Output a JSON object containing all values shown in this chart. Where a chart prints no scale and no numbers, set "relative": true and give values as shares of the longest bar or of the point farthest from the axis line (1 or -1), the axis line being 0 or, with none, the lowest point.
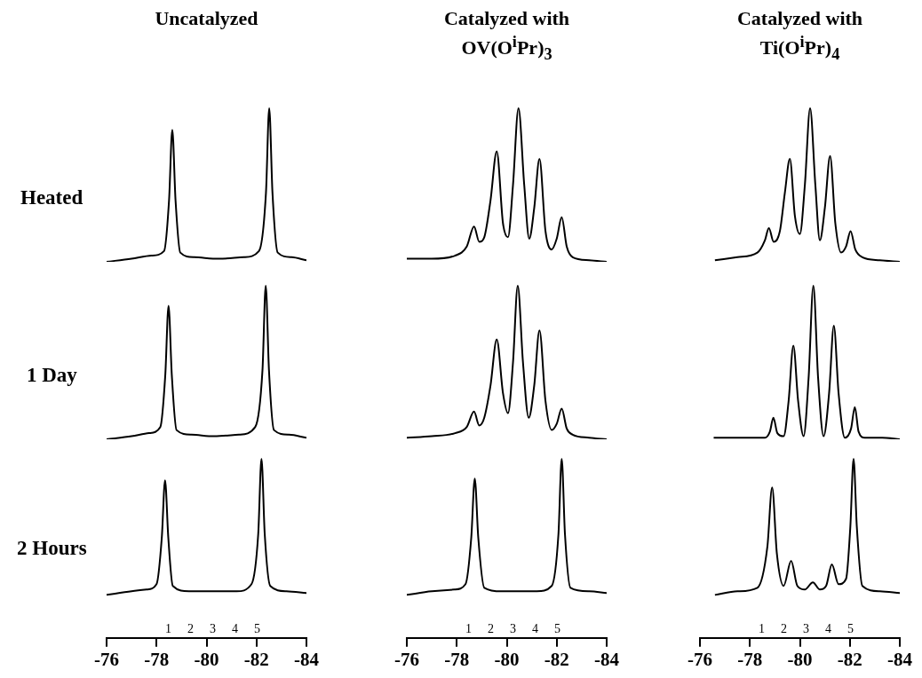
{
  "chart_data": [
    {
      "type": "line",
      "title": "Uncatalyzed",
      "ylabel": "Heated",
      "relative": true,
      "xlim": [
        -76,
        -84
      ],
      "tick_labels": false,
      "series": [
        {
          "color": "#000000",
          "x": [
            -76,
            -77,
            -77.8,
            -78.3,
            -78.5,
            -78.63,
            -78.76,
            -78.95,
            -79.5,
            -80.5,
            -81.5,
            -82.1,
            -82.38,
            -82.51,
            -82.64,
            -82.85,
            -83.4,
            -84
          ],
          "values": [
            0,
            0.02,
            0.04,
            0.07,
            0.4,
            0.86,
            0.4,
            0.06,
            0.03,
            0.02,
            0.03,
            0.07,
            0.45,
            1,
            0.45,
            0.06,
            0.03,
            0.01
          ]
        }
      ]
    },
    {
      "type": "line",
      "title": "Catalyzed with OV(O$^{i}$Pr)$_{3}$",
      "relative": true,
      "xlim": [
        -76,
        -84
      ],
      "tick_labels": false,
      "series": [
        {
          "color": "#000000",
          "x": [
            -76,
            -77,
            -77.93,
            -78.4,
            -78.69,
            -78.9,
            -79.1,
            -79.35,
            -79.6,
            -79.85,
            -80.05,
            -80.25,
            -80.47,
            -80.7,
            -80.9,
            -81.1,
            -81.31,
            -81.55,
            -81.8,
            -82,
            -82.2,
            -82.4,
            -82.64,
            -83.3,
            -84
          ],
          "values": [
            0.02,
            0.02,
            0.04,
            0.1,
            0.23,
            0.13,
            0.16,
            0.4,
            0.72,
            0.25,
            0.16,
            0.5,
            1,
            0.5,
            0.15,
            0.35,
            0.67,
            0.2,
            0.08,
            0.15,
            0.29,
            0.1,
            0.03,
            0.01,
            0
          ]
        }
      ]
    },
    {
      "type": "line",
      "title": "Catalyzed with Ti(O$^{i}$Pr)$_{4}$",
      "relative": true,
      "xlim": [
        -76,
        -84
      ],
      "tick_labels": false,
      "series": [
        {
          "color": "#000000",
          "x": [
            -76.6,
            -77.5,
            -78.3,
            -78.6,
            -78.76,
            -78.95,
            -79.2,
            -79.4,
            -79.6,
            -79.8,
            -80,
            -80.2,
            -80.41,
            -80.62,
            -80.8,
            -81,
            -81.21,
            -81.42,
            -81.65,
            -81.85,
            -82.03,
            -82.22,
            -82.5,
            -83.2,
            -84
          ],
          "values": [
            0.01,
            0.03,
            0.06,
            0.14,
            0.22,
            0.13,
            0.2,
            0.45,
            0.67,
            0.3,
            0.18,
            0.5,
            1,
            0.5,
            0.14,
            0.35,
            0.69,
            0.25,
            0.06,
            0.1,
            0.2,
            0.08,
            0.03,
            0.01,
            0
          ]
        }
      ]
    },
    {
      "type": "line",
      "ylabel": "1 Day",
      "relative": true,
      "xlim": [
        -76,
        -84
      ],
      "tick_labels": false,
      "series": [
        {
          "color": "#000000",
          "x": [
            -76,
            -77,
            -77.7,
            -78.15,
            -78.35,
            -78.48,
            -78.61,
            -78.8,
            -79.4,
            -80.3,
            -81.3,
            -81.95,
            -82.24,
            -82.37,
            -82.5,
            -82.7,
            -83.3,
            -84
          ],
          "values": [
            0,
            0.02,
            0.04,
            0.08,
            0.42,
            0.87,
            0.42,
            0.06,
            0.03,
            0.02,
            0.03,
            0.08,
            0.45,
            1,
            0.45,
            0.06,
            0.03,
            0.01
          ]
        }
      ]
    },
    {
      "type": "line",
      "relative": true,
      "xlim": [
        -76,
        -84
      ],
      "tick_labels": false,
      "series": [
        {
          "color": "#000000",
          "x": [
            -76,
            -77,
            -77.93,
            -78.4,
            -78.69,
            -78.9,
            -79.1,
            -79.35,
            -79.6,
            -79.85,
            -80.05,
            -80.25,
            -80.44,
            -80.65,
            -80.88,
            -81.1,
            -81.31,
            -81.55,
            -81.8,
            -82,
            -82.2,
            -82.4,
            -82.64,
            -83.3,
            -84
          ],
          "values": [
            0.01,
            0.02,
            0.04,
            0.08,
            0.18,
            0.09,
            0.14,
            0.35,
            0.65,
            0.3,
            0.17,
            0.5,
            1,
            0.5,
            0.14,
            0.35,
            0.71,
            0.25,
            0.06,
            0.1,
            0.2,
            0.07,
            0.03,
            0.01,
            0
          ]
        }
      ]
    },
    {
      "type": "line",
      "relative": true,
      "xlim": [
        -76,
        -84
      ],
      "tick_labels": false,
      "series": [
        {
          "color": "#000000",
          "x": [
            -76.55,
            -77.5,
            -78.6,
            -78.8,
            -78.94,
            -79.1,
            -79.35,
            -79.55,
            -79.74,
            -79.93,
            -80.15,
            -80.35,
            -80.54,
            -80.73,
            -80.95,
            -81.17,
            -81.36,
            -81.55,
            -81.8,
            -82.05,
            -82.2,
            -82.35,
            -82.6,
            -83.3,
            -84
          ],
          "values": [
            0.01,
            0.01,
            0.01,
            0.05,
            0.14,
            0.04,
            0.02,
            0.25,
            0.61,
            0.25,
            0.02,
            0.4,
            1,
            0.4,
            0.02,
            0.3,
            0.74,
            0.3,
            0.01,
            0.07,
            0.21,
            0.05,
            0.01,
            0.01,
            0
          ]
        }
      ]
    },
    {
      "type": "line",
      "ylabel": "2 Hours",
      "relative": true,
      "xlim": [
        -76,
        -84
      ],
      "xticks": [
        -76,
        -78,
        -80,
        -82,
        -84
      ],
      "annotations": [
        "1",
        "2",
        "3",
        "4",
        "5"
      ],
      "series": [
        {
          "color": "#000000",
          "x": [
            -76,
            -77,
            -77.6,
            -78,
            -78.21,
            -78.34,
            -78.47,
            -78.65,
            -79.3,
            -80.2,
            -81.2,
            -81.8,
            -82.07,
            -82.2,
            -82.33,
            -82.55,
            -83.2,
            -84
          ],
          "values": [
            0.24,
            0.26,
            0.27,
            0.3,
            0.56,
            0.88,
            0.56,
            0.29,
            0.26,
            0.26,
            0.26,
            0.3,
            0.58,
            1,
            0.58,
            0.29,
            0.26,
            0.25
          ]
        }
      ]
    },
    {
      "type": "line",
      "relative": true,
      "xlim": [
        -76,
        -84
      ],
      "xticks": [
        -76,
        -78,
        -80,
        -82,
        -84
      ],
      "annotations": [
        "1",
        "2",
        "3",
        "4",
        "5"
      ],
      "series": [
        {
          "color": "#000000",
          "x": [
            -76,
            -77,
            -77.9,
            -78.35,
            -78.58,
            -78.72,
            -78.86,
            -79.1,
            -79.8,
            -80.5,
            -81.2,
            -81.8,
            -82.07,
            -82.2,
            -82.33,
            -82.55,
            -83.3,
            -84
          ],
          "values": [
            0.24,
            0.26,
            0.27,
            0.3,
            0.56,
            0.89,
            0.56,
            0.28,
            0.26,
            0.26,
            0.26,
            0.29,
            0.58,
            1,
            0.58,
            0.28,
            0.26,
            0.25
          ]
        }
      ]
    },
    {
      "type": "line",
      "relative": true,
      "xlim": [
        -76,
        -84
      ],
      "xticks": [
        -76,
        -78,
        -80,
        -82,
        -84
      ],
      "annotations": [
        "1",
        "2",
        "3",
        "4",
        "5"
      ],
      "series": [
        {
          "color": "#000000",
          "x": [
            -76.6,
            -77.5,
            -78.3,
            -78.7,
            -78.89,
            -79.08,
            -79.35,
            -79.65,
            -79.9,
            -80.2,
            -80.52,
            -80.8,
            -81.05,
            -81.28,
            -81.55,
            -81.85,
            -82.02,
            -82.15,
            -82.28,
            -82.5,
            -83.2,
            -84
          ],
          "values": [
            0.24,
            0.26,
            0.28,
            0.51,
            0.84,
            0.47,
            0.29,
            0.43,
            0.29,
            0.27,
            0.31,
            0.27,
            0.29,
            0.41,
            0.3,
            0.33,
            0.62,
            1,
            0.62,
            0.29,
            0.26,
            0.25
          ]
        }
      ]
    }
  ]
}
